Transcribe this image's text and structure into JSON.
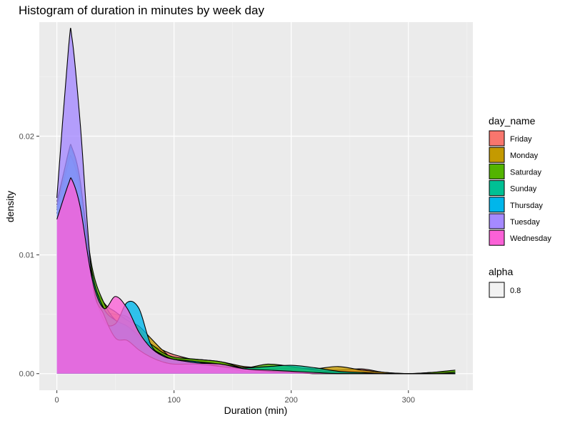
{
  "chart_data": {
    "type": "area",
    "title": "Histogram of duration in minutes by week day",
    "xlabel": "Duration (min)",
    "ylabel": "density",
    "xlim": [
      -15,
      355
    ],
    "ylim": [
      -0.0014,
      0.0296
    ],
    "x_ticks": [
      0,
      100,
      200,
      300
    ],
    "x_tick_labels": [
      "0",
      "100",
      "200",
      "300"
    ],
    "y_ticks": [
      0.0,
      0.01,
      0.02
    ],
    "y_tick_labels": [
      "0.00",
      "0.01",
      "0.02"
    ],
    "grid": true,
    "legend_position": "right",
    "legend": {
      "title": "day_name",
      "entries": [
        {
          "label": "Friday",
          "color": "#F8766D"
        },
        {
          "label": "Monday",
          "color": "#C49A00"
        },
        {
          "label": "Saturday",
          "color": "#53B400"
        },
        {
          "label": "Sunday",
          "color": "#00C094"
        },
        {
          "label": "Thursday",
          "color": "#00B6EB"
        },
        {
          "label": "Tuesday",
          "color": "#A58AFF"
        },
        {
          "label": "Wednesday",
          "color": "#FB61D7"
        }
      ]
    },
    "alpha_legend": {
      "title": "alpha",
      "label": "0.8"
    },
    "x": [
      0,
      10,
      13,
      20,
      30,
      40,
      50,
      60,
      70,
      80,
      90,
      100,
      120,
      140,
      160,
      180,
      200,
      220,
      240,
      260,
      280,
      300,
      320,
      340
    ],
    "series": [
      {
        "name": "Friday",
        "values": [
          0.0135,
          0.0182,
          0.0185,
          0.0155,
          0.0085,
          0.0055,
          0.005,
          0.0048,
          0.0038,
          0.0025,
          0.002,
          0.0016,
          0.0011,
          0.0007,
          0.0004,
          0.0004,
          0.0005,
          0.0004,
          0.0003,
          0.0004,
          0.0001,
          0.0,
          0.0,
          0.0
        ]
      },
      {
        "name": "Monday",
        "values": [
          0.014,
          0.017,
          0.0173,
          0.015,
          0.0082,
          0.006,
          0.0052,
          0.0045,
          0.004,
          0.003,
          0.002,
          0.0013,
          0.0012,
          0.001,
          0.0006,
          0.0005,
          0.0004,
          0.0004,
          0.0006,
          0.0003,
          0.0001,
          0.0,
          0.0001,
          0.0002
        ]
      },
      {
        "name": "Saturday",
        "values": [
          0.0145,
          0.0185,
          0.0188,
          0.016,
          0.009,
          0.006,
          0.0045,
          0.004,
          0.003,
          0.0025,
          0.0018,
          0.0014,
          0.0012,
          0.001,
          0.0005,
          0.0008,
          0.0006,
          0.0003,
          0.0001,
          0.0001,
          0.0,
          0.0,
          0.0001,
          0.0003
        ]
      },
      {
        "name": "Sunday",
        "values": [
          0.0138,
          0.0178,
          0.0181,
          0.0155,
          0.0085,
          0.0055,
          0.0045,
          0.004,
          0.0032,
          0.0022,
          0.0016,
          0.0012,
          0.001,
          0.0008,
          0.0005,
          0.0006,
          0.0007,
          0.0005,
          0.0002,
          0.0001,
          0.0,
          0.0,
          0.0,
          0.0001
        ]
      },
      {
        "name": "Thursday",
        "values": [
          0.0142,
          0.0187,
          0.019,
          0.0162,
          0.008,
          0.0045,
          0.0042,
          0.006,
          0.0055,
          0.0025,
          0.0015,
          0.0012,
          0.001,
          0.0006,
          0.0002,
          0.0001,
          0.0001,
          0.0,
          0.0,
          0.0,
          0.0,
          0.0,
          0.0,
          0.0
        ]
      },
      {
        "name": "Tuesday",
        "values": [
          0.0148,
          0.0275,
          0.0282,
          0.021,
          0.008,
          0.005,
          0.003,
          0.0028,
          0.002,
          0.0014,
          0.001,
          0.0008,
          0.0008,
          0.0006,
          0.0004,
          0.0002,
          0.0001,
          0.0,
          0.0,
          0.0,
          0.0,
          0.0,
          0.0,
          0.0
        ]
      },
      {
        "name": "Wednesday",
        "values": [
          0.013,
          0.016,
          0.0163,
          0.014,
          0.008,
          0.0055,
          0.0065,
          0.0055,
          0.0035,
          0.0022,
          0.0015,
          0.0012,
          0.0009,
          0.0008,
          0.0004,
          0.0003,
          0.0002,
          0.0001,
          0.0,
          0.0,
          0.0,
          0.0,
          0.0,
          0.0
        ]
      }
    ]
  }
}
